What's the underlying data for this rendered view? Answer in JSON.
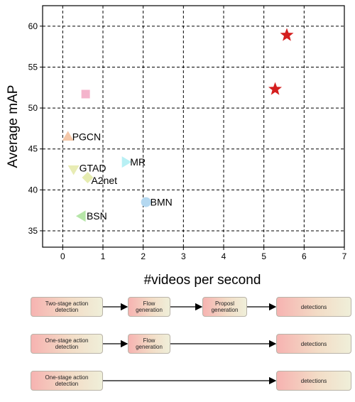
{
  "chart_data": {
    "type": "scatter",
    "xlabel": "#videos per second",
    "ylabel": "Average mAP",
    "xlim": [
      -0.5,
      7
    ],
    "ylim": [
      33,
      62.5
    ],
    "xticks": [
      "0",
      "1",
      "2",
      "3",
      "4",
      "5",
      "6",
      "7"
    ],
    "yticks": [
      "35",
      "40",
      "45",
      "50",
      "55",
      "60"
    ],
    "grid": "dashed",
    "points": [
      {
        "label": "PGCN",
        "x": 0.13,
        "y": 46.5,
        "marker": "triangle-up",
        "color": "#f4c7a8"
      },
      {
        "label": "GTAD",
        "x": 0.27,
        "y": 42.5,
        "marker": "triangle-down",
        "color": "#e8ecb4"
      },
      {
        "label": "A2net",
        "x": 0.62,
        "y": 41.5,
        "marker": "diamond",
        "color": "#e6ecb0"
      },
      {
        "label": "BSN",
        "x": 0.47,
        "y": 36.8,
        "marker": "triangle-left",
        "color": "#b6e6a8"
      },
      {
        "label": "MR",
        "x": 1.57,
        "y": 43.4,
        "marker": "triangle-right",
        "color": "#b8f0f4"
      },
      {
        "label": "BMN",
        "x": 2.07,
        "y": 38.5,
        "marker": "circle",
        "color": "#b4d8f0"
      },
      {
        "label": "",
        "x": 0.57,
        "y": 51.7,
        "marker": "square",
        "color": "#f4b4cc"
      },
      {
        "label": "",
        "x": 5.28,
        "y": 52.3,
        "marker": "star",
        "color": "#d41e1e"
      },
      {
        "label": "",
        "x": 5.57,
        "y": 58.9,
        "marker": "star",
        "color": "#d41e1e"
      }
    ]
  },
  "pipelines": [
    {
      "steps": [
        "Two-stage action\ndetection",
        "Flow\ngeneration",
        "Proposl\ngeneration",
        "detections"
      ]
    },
    {
      "steps": [
        "One-stage action\ndetection",
        "Flow\ngeneration",
        "detections"
      ]
    },
    {
      "steps": [
        "One-stage action\ndetection",
        "detections"
      ]
    }
  ]
}
